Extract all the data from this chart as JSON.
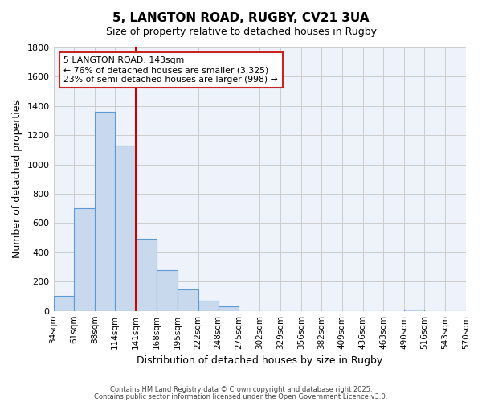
{
  "title": "5, LANGTON ROAD, RUGBY, CV21 3UA",
  "subtitle": "Size of property relative to detached houses in Rugby",
  "xlabel": "Distribution of detached houses by size in Rugby",
  "ylabel": "Number of detached properties",
  "bar_color": "#c8d9ee",
  "bar_edge_color": "#5b9bd5",
  "background_color": "#ffffff",
  "plot_bg_color": "#eef2fb",
  "grid_color": "#cccccc",
  "bin_edges": [
    34,
    61,
    88,
    114,
    141,
    168,
    195,
    222,
    248,
    275,
    302,
    329,
    356,
    382,
    409,
    436,
    463,
    490,
    516,
    543,
    570
  ],
  "bin_labels": [
    "34sqm",
    "61sqm",
    "88sqm",
    "114sqm",
    "141sqm",
    "168sqm",
    "195sqm",
    "222sqm",
    "248sqm",
    "275sqm",
    "302sqm",
    "329sqm",
    "356sqm",
    "382sqm",
    "409sqm",
    "436sqm",
    "463sqm",
    "490sqm",
    "516sqm",
    "543sqm",
    "570sqm"
  ],
  "bar_heights": [
    100,
    700,
    1360,
    1130,
    495,
    280,
    145,
    70,
    30,
    0,
    0,
    0,
    0,
    0,
    0,
    0,
    0,
    10,
    0,
    0
  ],
  "vline_x": 141,
  "vline_color": "#cc0000",
  "annotation_title": "5 LANGTON ROAD: 143sqm",
  "annotation_line1": "← 76% of detached houses are smaller (3,325)",
  "annotation_line2": "23% of semi-detached houses are larger (998) →",
  "ylim": [
    0,
    1800
  ],
  "yticks": [
    0,
    200,
    400,
    600,
    800,
    1000,
    1200,
    1400,
    1600,
    1800
  ],
  "footer1": "Contains HM Land Registry data © Crown copyright and database right 2025.",
  "footer2": "Contains public sector information licensed under the Open Government Licence v3.0."
}
